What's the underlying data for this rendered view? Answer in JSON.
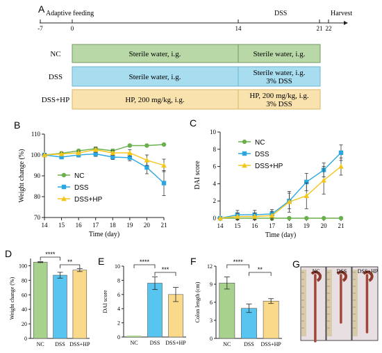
{
  "panel_labels": {
    "A": "A",
    "B": "B",
    "C": "C",
    "D": "D",
    "E": "E",
    "F": "F",
    "G": "G"
  },
  "timeline": {
    "ticks": [
      "-7",
      "0",
      "14",
      "21",
      "22"
    ],
    "tick_days": [
      -7,
      0,
      14,
      21,
      22
    ],
    "phase_adaptive": "Adaptive feeding",
    "phase_dss": "DSS",
    "phase_harvest": "Harvest"
  },
  "design_table": {
    "rows": [
      {
        "group": "NC",
        "color": "#b9d8a8",
        "stroke": "#6f9a5c",
        "cell1": [
          "Sterile water, i.g."
        ],
        "cell2": [
          "Sterile water, i.g."
        ]
      },
      {
        "group": "DSS",
        "color": "#a8dcef",
        "stroke": "#6db6d2",
        "cell1": [
          "Sterile water, i.g."
        ],
        "cell2": [
          "Sterile water, i.g.",
          "3% DSS"
        ]
      },
      {
        "group": "DSS+HP",
        "color": "#f9e2ad",
        "stroke": "#d9b765",
        "cell1": [
          "HP, 200 mg/kg, i.g."
        ],
        "cell2": [
          "HP, 200 mg/kg, i.g.",
          "3% DSS"
        ]
      }
    ]
  },
  "chart_data": [
    {
      "panel": "B",
      "type": "line",
      "xlabel": "Time (day)",
      "ylabel": "Weight change (%)",
      "x": [
        14,
        15,
        16,
        17,
        18,
        19,
        20,
        21
      ],
      "xlim": [
        14,
        21
      ],
      "ylim": [
        70,
        110
      ],
      "yticks": [
        70,
        80,
        90,
        100,
        110
      ],
      "series": [
        {
          "name": "NC",
          "color": "#6ab04c",
          "marker": "circle",
          "values": [
            100,
            100.8,
            102,
            103,
            102,
            104.5,
            104.5,
            105
          ],
          "err": [
            0.5,
            0.6,
            0.7,
            0.8,
            0.8,
            0.7,
            0.6,
            0.4
          ]
        },
        {
          "name": "DSS",
          "color": "#2aa7e3",
          "marker": "square",
          "values": [
            100,
            99,
            100,
            100.5,
            99,
            98.7,
            94,
            86.5
          ],
          "err": [
            0.8,
            0.9,
            1.0,
            1.2,
            1.2,
            1.5,
            3.0,
            6.0
          ]
        },
        {
          "name": "DSS+HP",
          "color": "#f5c518",
          "marker": "triangle",
          "values": [
            100,
            100.5,
            101,
            102.5,
            101,
            101,
            97.5,
            95
          ],
          "err": [
            0.6,
            0.8,
            0.9,
            1.2,
            1.2,
            1.5,
            2.5,
            3.0
          ]
        }
      ]
    },
    {
      "panel": "C",
      "type": "line",
      "xlabel": "Time (day)",
      "ylabel": "DAI score",
      "x": [
        14,
        15,
        16,
        17,
        18,
        19,
        20,
        21
      ],
      "xlim": [
        14,
        21
      ],
      "ylim": [
        0,
        10
      ],
      "yticks": [
        0,
        2,
        4,
        6,
        8,
        10
      ],
      "series": [
        {
          "name": "NC",
          "color": "#6ab04c",
          "marker": "circle",
          "values": [
            0,
            0,
            0,
            0,
            0,
            0,
            0,
            0
          ],
          "err": [
            0,
            0,
            0,
            0,
            0,
            0,
            0,
            0
          ]
        },
        {
          "name": "DSS",
          "color": "#2aa7e3",
          "marker": "square",
          "values": [
            0,
            0.4,
            0.4,
            0.5,
            2.0,
            4.2,
            5.6,
            7.6
          ],
          "err": [
            0,
            0.5,
            0.5,
            0.5,
            0.9,
            1.0,
            0.8,
            0.9
          ]
        },
        {
          "name": "DSS+HP",
          "color": "#f5c518",
          "marker": "triangle",
          "values": [
            0,
            0.2,
            0.2,
            0.3,
            1.9,
            2.6,
            4.4,
            6.0
          ],
          "err": [
            0,
            0.4,
            0.4,
            0.5,
            1.2,
            1.5,
            1.6,
            1.0
          ]
        }
      ]
    },
    {
      "panel": "D",
      "type": "bar",
      "ylabel": "Weight change (%)",
      "categories": [
        "NC",
        "DSS",
        "DSS+HP"
      ],
      "values": [
        105,
        87,
        94
      ],
      "err": [
        0.6,
        4,
        2
      ],
      "ylim": [
        0,
        110
      ],
      "yticks": [
        0,
        20,
        40,
        60,
        80,
        100
      ],
      "colors": [
        "#a9d18e",
        "#57c5f0",
        "#fbd98a"
      ],
      "significance": [
        {
          "from": 0,
          "to": 1,
          "label": "****"
        },
        {
          "from": 1,
          "to": 2,
          "label": "**"
        }
      ]
    },
    {
      "panel": "E",
      "type": "bar",
      "ylabel": "DAI score",
      "categories": [
        "NC",
        "DSS",
        "DSS+HP"
      ],
      "values": [
        0,
        7.6,
        6.0
      ],
      "err": [
        0,
        0.9,
        1.0
      ],
      "ylim": [
        0,
        10
      ],
      "yticks": [
        0,
        2,
        4,
        6,
        8,
        10
      ],
      "colors": [
        "#a9d18e",
        "#57c5f0",
        "#fbd98a"
      ],
      "significance": [
        {
          "from": 0,
          "to": 1,
          "label": "****"
        },
        {
          "from": 1,
          "to": 2,
          "label": "***"
        }
      ]
    },
    {
      "panel": "F",
      "type": "bar",
      "ylabel": "Colon length (cm)",
      "categories": [
        "NC",
        "DSS",
        "DSS+HP"
      ],
      "values": [
        9.2,
        5.0,
        6.2
      ],
      "err": [
        1.0,
        0.7,
        0.4
      ],
      "ylim": [
        0,
        12
      ],
      "yticks": [
        0,
        3,
        6,
        9,
        12
      ],
      "colors": [
        "#a9d18e",
        "#57c5f0",
        "#fbd98a"
      ],
      "significance": [
        {
          "from": 0,
          "to": 1,
          "label": "****"
        },
        {
          "from": 1,
          "to": 2,
          "label": "**"
        }
      ]
    }
  ],
  "photo_labels": [
    "NC",
    "DSS",
    "DSS+HP"
  ]
}
